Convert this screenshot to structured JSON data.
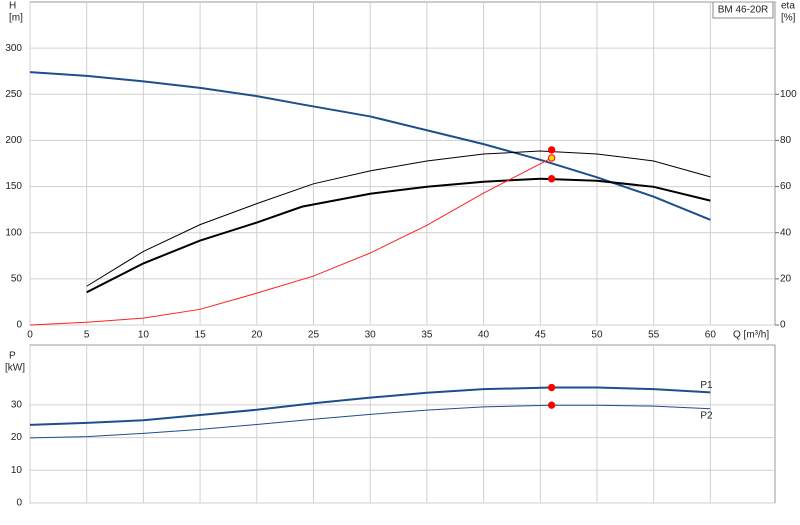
{
  "chart_data": [
    {
      "type": "line",
      "y_label": "H",
      "y_unit": "[m]",
      "y2_label": "eta",
      "y2_unit": "[%]",
      "x_label": "Q [m³/h]",
      "annotation": "BM 46-20R",
      "xlim": [
        0,
        65.7
      ],
      "xticks": [
        0,
        5,
        10,
        15,
        20,
        25,
        30,
        35,
        40,
        45,
        50,
        55,
        60
      ],
      "ylim": [
        0,
        350
      ],
      "yticks": [
        0,
        50,
        100,
        150,
        200,
        250,
        300
      ],
      "y2lim": [
        0,
        140
      ],
      "y2ticks": [
        0,
        20,
        40,
        60,
        80,
        100
      ],
      "grid": true,
      "series": [
        {
          "mode": "line",
          "color": "#1d4f8c",
          "line_width": 2,
          "x": [
            0,
            5,
            10,
            15,
            20,
            24,
            30,
            35,
            40,
            45,
            50,
            55,
            60
          ],
          "values": [
            274,
            270,
            264,
            257,
            248,
            239,
            226,
            211,
            196,
            179,
            160,
            139,
            114
          ]
        },
        {
          "mode": "line",
          "color": "#000000",
          "line_width": 1,
          "axis": "y2",
          "x": [
            5,
            10,
            15,
            20,
            25,
            30,
            35,
            40,
            45,
            50,
            55,
            60
          ],
          "values": [
            16.8,
            31.9,
            43.5,
            52.6,
            61.2,
            66.8,
            71.1,
            74.1,
            75.4,
            74.1,
            71.1,
            64.2
          ]
        },
        {
          "mode": "line",
          "color": "#000000",
          "line_width": 2,
          "axis": "y2",
          "x": [
            5,
            10,
            15,
            20,
            24,
            30,
            35,
            40,
            45,
            50,
            55,
            60
          ],
          "values": [
            14.2,
            26.7,
            36.6,
            44.4,
            51.3,
            56.9,
            59.9,
            62.1,
            63.4,
            62.5,
            59.9,
            53.9
          ]
        },
        {
          "mode": "line",
          "color": "#ff2020",
          "line_width": 1,
          "x": [
            0,
            5,
            10,
            15,
            20,
            25,
            30,
            35,
            40,
            46
          ],
          "values": [
            0,
            3,
            7.5,
            17,
            34.5,
            53,
            78,
            108,
            143,
            181
          ]
        },
        {
          "mode": "markers",
          "color": "#ff0000",
          "axis": "y2",
          "x": [
            46,
            46
          ],
          "values": [
            75.9,
            63.4
          ]
        },
        {
          "mode": "markers",
          "color": "#ffd700",
          "x": [
            46
          ],
          "values": [
            181
          ]
        }
      ]
    },
    {
      "type": "line",
      "y_label": "P",
      "y_unit": "[kW]",
      "xlim": [
        0,
        65.7
      ],
      "ylim": [
        0,
        48.3
      ],
      "yticks": [
        0,
        10,
        20,
        30
      ],
      "grid": true,
      "series": [
        {
          "name": "P1",
          "mode": "line",
          "color": "#1d4f8c",
          "line_width": 2,
          "x": [
            0,
            5,
            10,
            15,
            20,
            25,
            30,
            35,
            40,
            46,
            50,
            55,
            60
          ],
          "values": [
            23.9,
            24.5,
            25.3,
            26.9,
            28.5,
            30.5,
            32.2,
            33.7,
            34.8,
            35.3,
            35.3,
            34.8,
            33.8
          ]
        },
        {
          "name": "P2",
          "mode": "line",
          "color": "#1d4f8c",
          "line_width": 1,
          "x": [
            0,
            5,
            10,
            15,
            20,
            25,
            30,
            35,
            40,
            46,
            50,
            55,
            60
          ],
          "values": [
            19.9,
            20.3,
            21.3,
            22.5,
            24,
            25.6,
            27.1,
            28.4,
            29.4,
            29.9,
            29.9,
            29.6,
            28.8
          ]
        },
        {
          "mode": "markers",
          "color": "#ff0000",
          "x": [
            46,
            46
          ],
          "values": [
            35.3,
            29.9
          ]
        }
      ]
    }
  ]
}
